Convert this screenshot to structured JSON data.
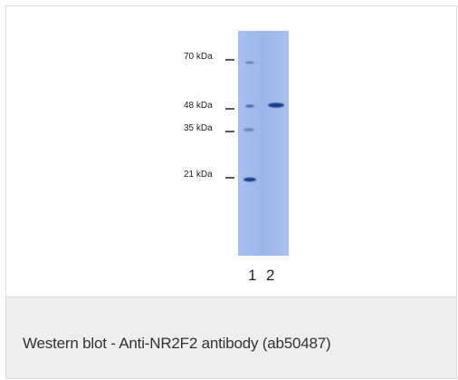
{
  "figure": {
    "markers": [
      {
        "label": "70 kDa",
        "kda": 70
      },
      {
        "label": "48 kDa",
        "kda": 48
      },
      {
        "label": "35 kDa",
        "kda": 35
      },
      {
        "label": "21 kDa",
        "kda": 21
      }
    ],
    "lanes": [
      {
        "label": "1"
      },
      {
        "label": "2"
      }
    ],
    "membrane_color": "#9fb9ea",
    "band_color": "#1d3b8a"
  },
  "caption": {
    "text": "Western blot - Anti-NR2F2 antibody (ab50487)"
  }
}
